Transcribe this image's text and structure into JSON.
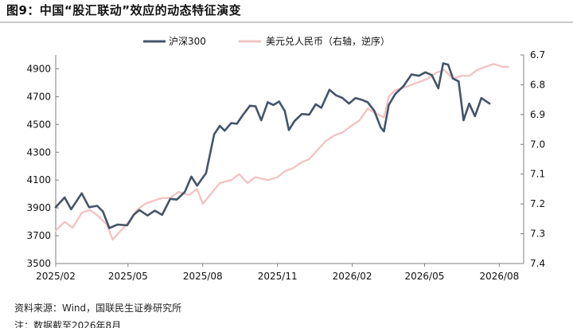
{
  "title": "图9：中国“股汇联动”效应的动态特征演变",
  "source": "资料来源：Wind，国联民生证券研究所",
  "note": "注：数据截至2026年8月",
  "chart_data": {
    "type": "line",
    "title": "图9：中国“股汇联动”效应的动态特征演变",
    "legend_position": "top",
    "grid": false,
    "x_axis": {
      "type": "date",
      "range": [
        "2025-02-01",
        "2026-08-31"
      ],
      "tick_labels": [
        "2025/02",
        "2025/05",
        "2025/08",
        "2025/11",
        "2026/02",
        "2026/05",
        "2026/08"
      ]
    },
    "y_left": {
      "range": [
        3500,
        5000
      ],
      "ticks": [
        3500,
        3700,
        3900,
        4100,
        4300,
        4500,
        4700,
        4900
      ]
    },
    "y_right": {
      "range": [
        6.7,
        7.4
      ],
      "reversed": true,
      "ticks": [
        6.7,
        6.8,
        6.9,
        7.0,
        7.1,
        7.2,
        7.3,
        7.4
      ]
    },
    "series": [
      {
        "name": "沪深300",
        "axis": "left",
        "color": "#44546a",
        "points": [
          [
            "2025-02-01",
            3905
          ],
          [
            "2025-02-12",
            3975
          ],
          [
            "2025-02-20",
            3890
          ],
          [
            "2025-03-05",
            4005
          ],
          [
            "2025-03-14",
            3905
          ],
          [
            "2025-03-24",
            3915
          ],
          [
            "2025-03-31",
            3875
          ],
          [
            "2025-04-08",
            3755
          ],
          [
            "2025-04-18",
            3780
          ],
          [
            "2025-04-30",
            3775
          ],
          [
            "2025-05-08",
            3850
          ],
          [
            "2025-05-15",
            3885
          ],
          [
            "2025-05-25",
            3845
          ],
          [
            "2025-06-03",
            3880
          ],
          [
            "2025-06-12",
            3850
          ],
          [
            "2025-06-22",
            3965
          ],
          [
            "2025-06-30",
            3960
          ],
          [
            "2025-07-10",
            4015
          ],
          [
            "2025-07-18",
            4125
          ],
          [
            "2025-07-25",
            4060
          ],
          [
            "2025-08-05",
            4150
          ],
          [
            "2025-08-15",
            4430
          ],
          [
            "2025-08-22",
            4490
          ],
          [
            "2025-08-28",
            4455
          ],
          [
            "2025-09-05",
            4510
          ],
          [
            "2025-09-12",
            4505
          ],
          [
            "2025-09-19",
            4565
          ],
          [
            "2025-09-28",
            4635
          ],
          [
            "2025-10-05",
            4630
          ],
          [
            "2025-10-12",
            4530
          ],
          [
            "2025-10-20",
            4660
          ],
          [
            "2025-10-27",
            4640
          ],
          [
            "2025-11-03",
            4665
          ],
          [
            "2025-11-10",
            4595
          ],
          [
            "2025-11-15",
            4460
          ],
          [
            "2025-11-22",
            4525
          ],
          [
            "2025-12-01",
            4575
          ],
          [
            "2025-12-10",
            4570
          ],
          [
            "2025-12-18",
            4645
          ],
          [
            "2025-12-25",
            4620
          ],
          [
            "2026-01-04",
            4750
          ],
          [
            "2026-01-12",
            4710
          ],
          [
            "2026-01-20",
            4690
          ],
          [
            "2026-01-28",
            4650
          ],
          [
            "2026-02-05",
            4690
          ],
          [
            "2026-02-14",
            4675
          ],
          [
            "2026-02-20",
            4660
          ],
          [
            "2026-02-28",
            4600
          ],
          [
            "2026-03-08",
            4480
          ],
          [
            "2026-03-12",
            4450
          ],
          [
            "2026-03-18",
            4640
          ],
          [
            "2026-03-26",
            4720
          ],
          [
            "2026-04-05",
            4775
          ],
          [
            "2026-04-15",
            4860
          ],
          [
            "2026-04-24",
            4850
          ],
          [
            "2026-05-02",
            4875
          ],
          [
            "2026-05-10",
            4855
          ],
          [
            "2026-05-18",
            4760
          ],
          [
            "2026-05-24",
            4940
          ],
          [
            "2026-05-30",
            4930
          ],
          [
            "2026-06-05",
            4830
          ],
          [
            "2026-06-12",
            4810
          ],
          [
            "2026-06-18",
            4530
          ],
          [
            "2026-06-25",
            4650
          ],
          [
            "2026-07-02",
            4560
          ],
          [
            "2026-07-10",
            4690
          ],
          [
            "2026-07-20",
            4650
          ]
        ]
      },
      {
        "name": "美元兑人民币（右轴，逆序）",
        "axis": "right",
        "color": "#f2c4c4",
        "points": [
          [
            "2025-02-01",
            7.29
          ],
          [
            "2025-02-12",
            7.26
          ],
          [
            "2025-02-22",
            7.28
          ],
          [
            "2025-03-05",
            7.23
          ],
          [
            "2025-03-15",
            7.22
          ],
          [
            "2025-03-25",
            7.24
          ],
          [
            "2025-04-05",
            7.27
          ],
          [
            "2025-04-12",
            7.32
          ],
          [
            "2025-04-22",
            7.29
          ],
          [
            "2025-05-02",
            7.26
          ],
          [
            "2025-05-12",
            7.22
          ],
          [
            "2025-05-22",
            7.2
          ],
          [
            "2025-06-01",
            7.19
          ],
          [
            "2025-06-12",
            7.18
          ],
          [
            "2025-06-22",
            7.18
          ],
          [
            "2025-07-02",
            7.16
          ],
          [
            "2025-07-15",
            7.17
          ],
          [
            "2025-07-25",
            7.15
          ],
          [
            "2025-08-01",
            7.2
          ],
          [
            "2025-08-10",
            7.17
          ],
          [
            "2025-08-22",
            7.13
          ],
          [
            "2025-09-05",
            7.12
          ],
          [
            "2025-09-15",
            7.1
          ],
          [
            "2025-09-25",
            7.13
          ],
          [
            "2025-10-05",
            7.11
          ],
          [
            "2025-10-20",
            7.12
          ],
          [
            "2025-11-01",
            7.11
          ],
          [
            "2025-11-10",
            7.09
          ],
          [
            "2025-11-20",
            7.08
          ],
          [
            "2025-12-01",
            7.06
          ],
          [
            "2025-12-10",
            7.05
          ],
          [
            "2025-12-20",
            7.02
          ],
          [
            "2025-12-30",
            6.99
          ],
          [
            "2026-01-10",
            6.97
          ],
          [
            "2026-01-20",
            6.96
          ],
          [
            "2026-01-30",
            6.94
          ],
          [
            "2026-02-10",
            6.92
          ],
          [
            "2026-02-20",
            6.88
          ],
          [
            "2026-02-26",
            6.89
          ],
          [
            "2026-03-05",
            6.9
          ],
          [
            "2026-03-12",
            6.91
          ],
          [
            "2026-03-18",
            6.84
          ],
          [
            "2026-03-25",
            6.82
          ],
          [
            "2026-04-05",
            6.81
          ],
          [
            "2026-04-15",
            6.8
          ],
          [
            "2026-04-25",
            6.79
          ],
          [
            "2026-05-05",
            6.78
          ],
          [
            "2026-05-15",
            6.76
          ],
          [
            "2026-05-25",
            6.75
          ],
          [
            "2026-06-05",
            6.78
          ],
          [
            "2026-06-15",
            6.77
          ],
          [
            "2026-06-25",
            6.77
          ],
          [
            "2026-07-05",
            6.75
          ],
          [
            "2026-07-15",
            6.74
          ],
          [
            "2026-07-25",
            6.73
          ],
          [
            "2026-08-05",
            6.74
          ],
          [
            "2026-08-12",
            6.74
          ]
        ]
      }
    ]
  }
}
